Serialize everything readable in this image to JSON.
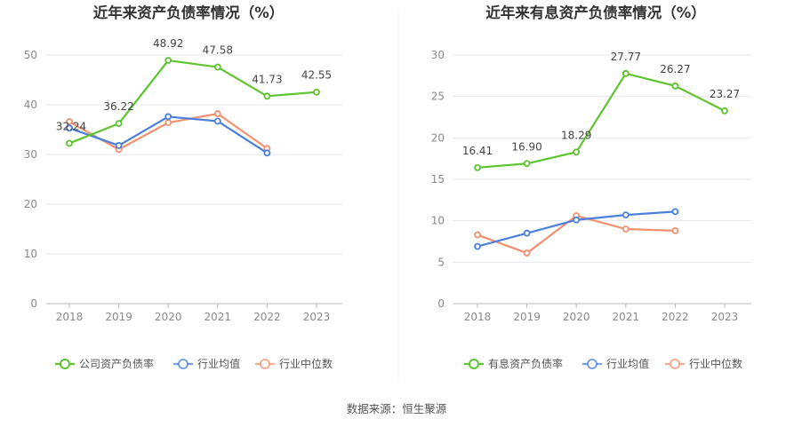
{
  "colors": {
    "primary": "#5ec42f",
    "industry_avg": "#4a80dc",
    "industry_median": "#f3906e"
  },
  "source_text": "数据来源：恒生聚源",
  "chart_data": [
    {
      "type": "line",
      "title": "近年来资产负债率情况（%）",
      "categories": [
        "2018",
        "2019",
        "2020",
        "2021",
        "2022",
        "2023"
      ],
      "ylim": [
        0,
        50
      ],
      "yticks": [
        0,
        10,
        20,
        30,
        40,
        50
      ],
      "grid": true,
      "legend_position": "bottom",
      "series": [
        {
          "name": "公司资产负债率",
          "color": "#5ec42f",
          "values": [
            32.24,
            36.22,
            48.92,
            47.58,
            41.73,
            42.55
          ],
          "labels": [
            "32.24",
            "36.22",
            "48.92",
            "47.58",
            "41.73",
            "42.55"
          ]
        },
        {
          "name": "行业均值",
          "color": "#4a80dc",
          "values": [
            35.3,
            31.8,
            37.6,
            36.7,
            30.3,
            null
          ]
        },
        {
          "name": "行业中位数",
          "color": "#f3906e",
          "values": [
            36.6,
            31.0,
            36.4,
            38.2,
            31.2,
            null
          ]
        }
      ]
    },
    {
      "type": "line",
      "title": "近年来有息资产负债率情况（%）",
      "categories": [
        "2018",
        "2019",
        "2020",
        "2021",
        "2022",
        "2023"
      ],
      "ylim": [
        0,
        30
      ],
      "yticks": [
        0,
        5,
        10,
        15,
        20,
        25,
        30
      ],
      "grid": true,
      "legend_position": "bottom",
      "series": [
        {
          "name": "有息资产负债率",
          "color": "#5ec42f",
          "values": [
            16.41,
            16.9,
            18.29,
            27.77,
            26.27,
            23.27
          ],
          "labels": [
            "16.41",
            "16.90",
            "18.29",
            "27.77",
            "26.27",
            "23.27"
          ]
        },
        {
          "name": "行业均值",
          "color": "#4a80dc",
          "values": [
            6.9,
            8.5,
            10.1,
            10.7,
            11.1,
            null
          ]
        },
        {
          "name": "行业中位数",
          "color": "#f3906e",
          "values": [
            8.3,
            6.1,
            10.6,
            9.0,
            8.8,
            null
          ]
        }
      ]
    }
  ]
}
